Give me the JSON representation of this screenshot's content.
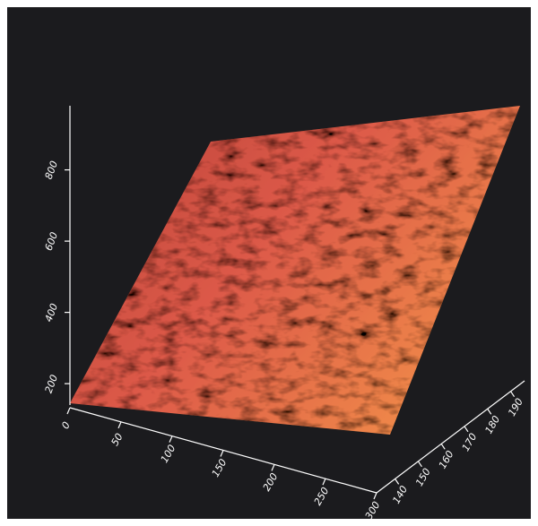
{
  "chart_data": {
    "type": "surface",
    "zlim": [
      140,
      980
    ],
    "zticks": [
      200,
      400,
      600,
      800
    ],
    "xlim": [
      0,
      300
    ],
    "xticks": [
      0,
      50,
      100,
      150,
      200,
      250,
      300
    ],
    "ylim": [
      132,
      196
    ],
    "yticks": [
      140,
      150,
      160,
      170,
      180,
      190
    ],
    "color": "#e0604a"
  }
}
